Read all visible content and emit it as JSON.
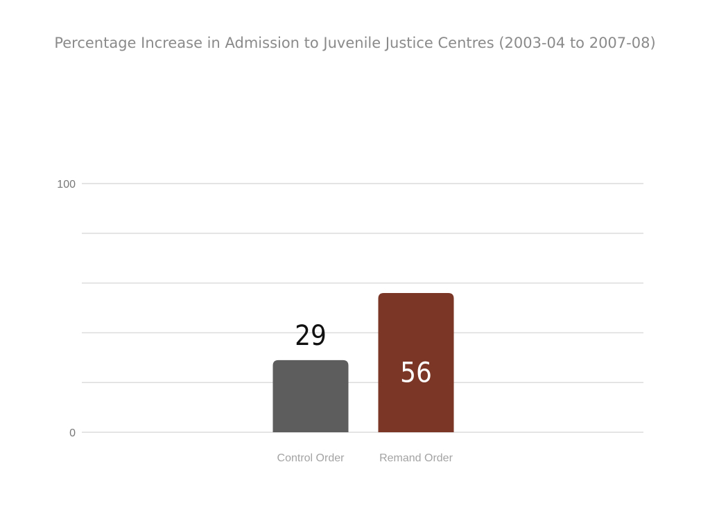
{
  "chart_data": {
    "type": "bar",
    "title": "Percentage Increase in Admission to Juvenile Justice Centres (2003-04 to 2007-08)",
    "xlabel": "",
    "ylabel": "",
    "categories": [
      "Control Order",
      "Remand Order"
    ],
    "values": [
      29,
      56
    ],
    "ylim": [
      0,
      100
    ],
    "y_tick_labels": [
      "0",
      "100"
    ],
    "gridline_values": [
      0,
      20,
      40,
      60,
      80,
      100
    ],
    "grid": true,
    "legend": "none",
    "bar_colors": [
      "#5d5d5d",
      "#7b3626"
    ],
    "value_label_colors": [
      "#111111",
      "#ffffff"
    ],
    "value_label_positions": [
      "above",
      "inside"
    ]
  }
}
